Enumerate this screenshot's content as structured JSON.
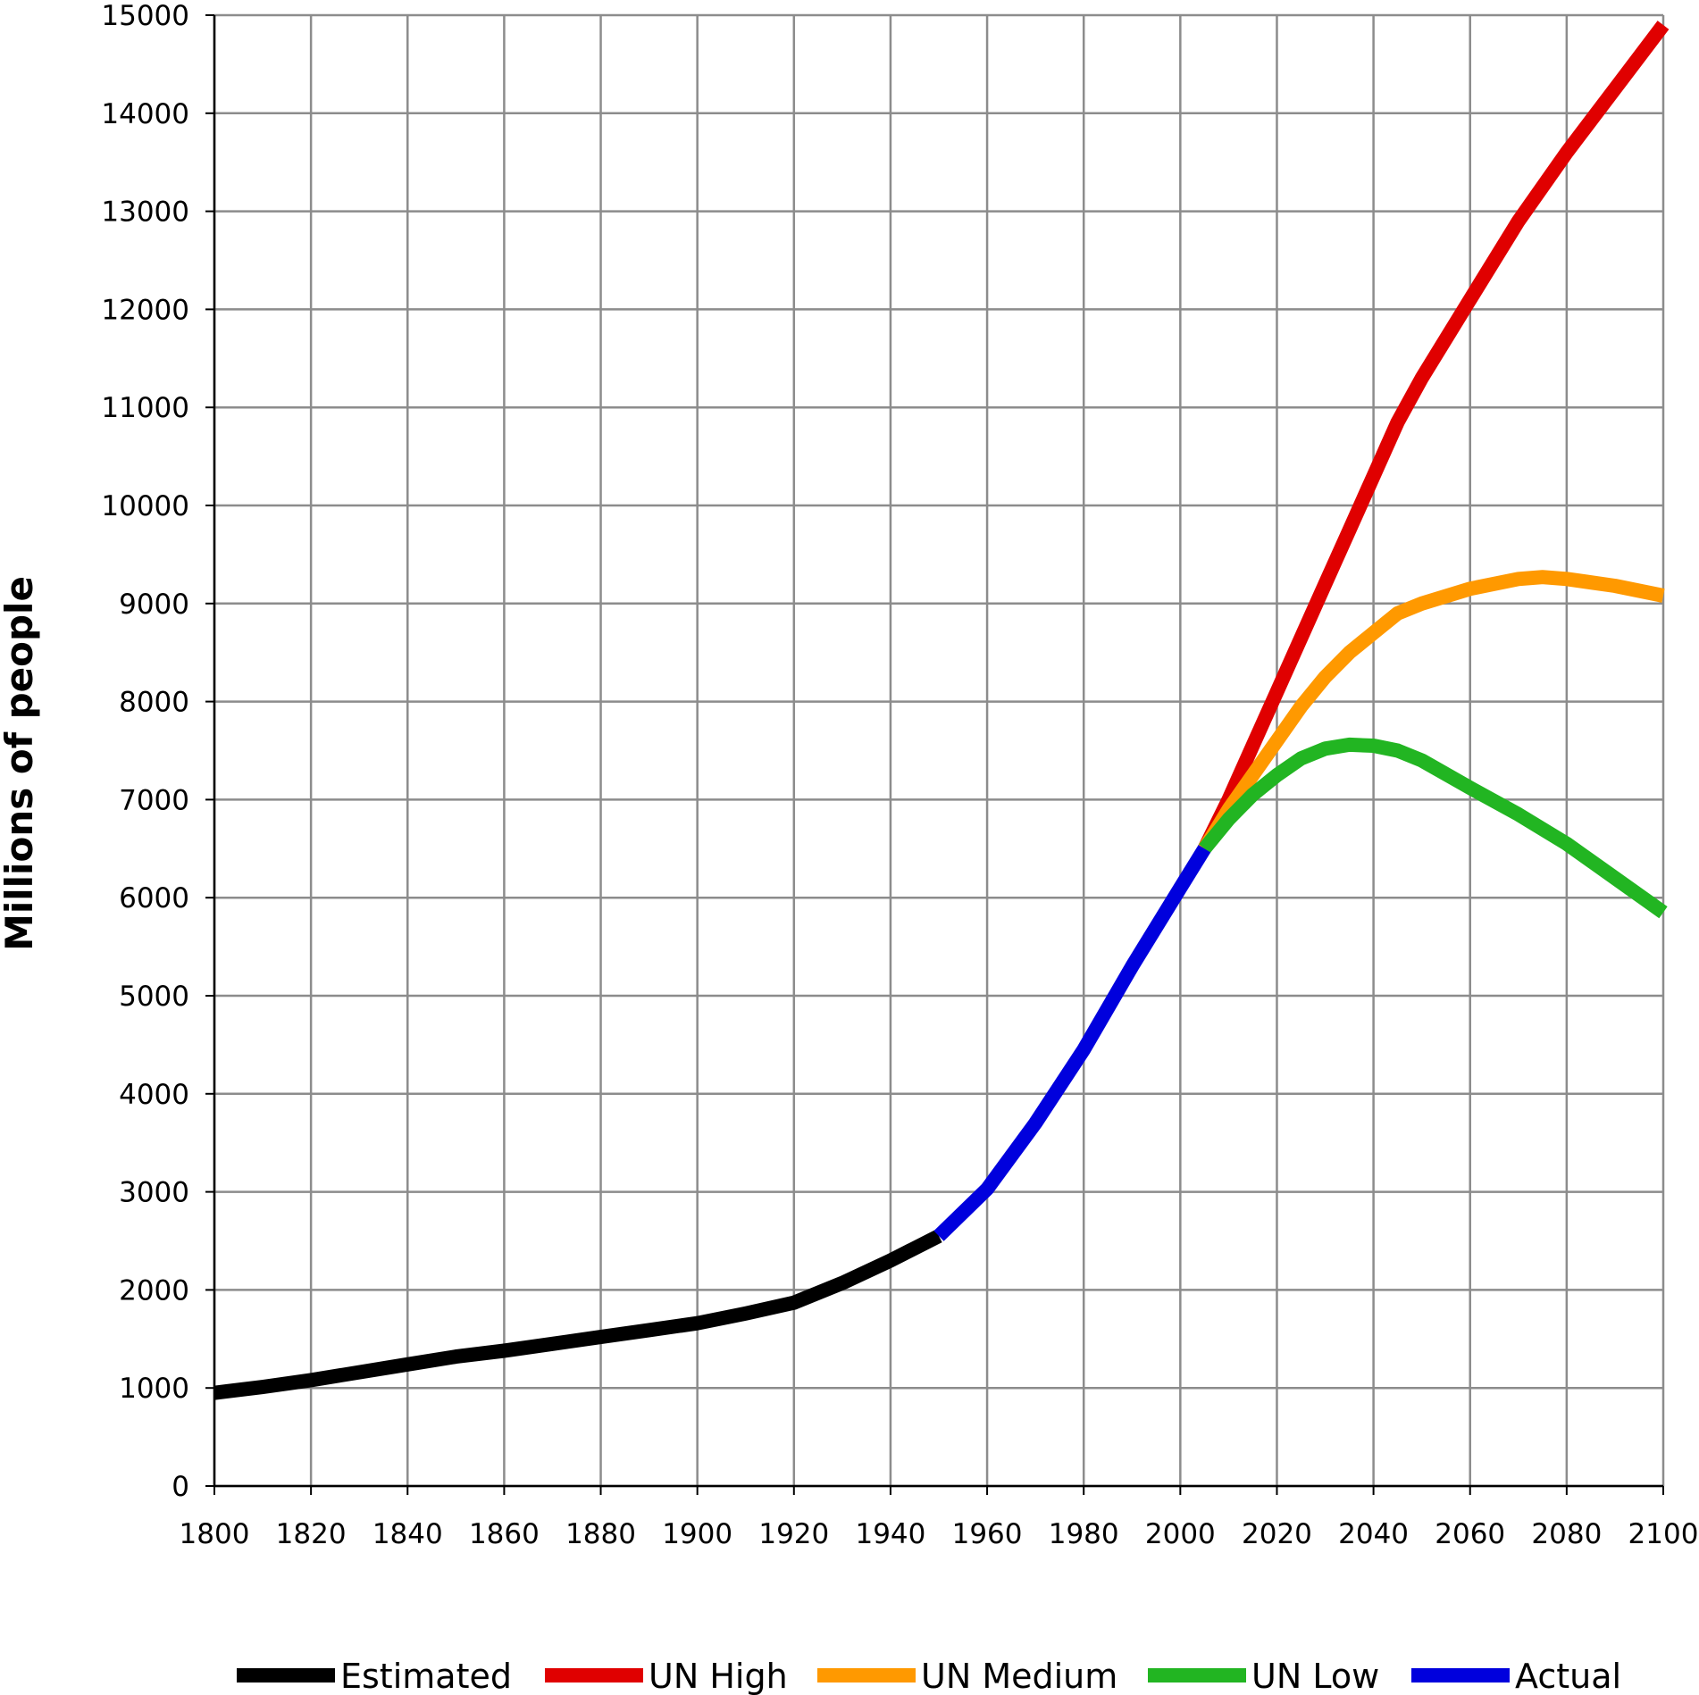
{
  "chart_data": {
    "type": "line",
    "title": "",
    "xlabel": "",
    "ylabel": "Millions of people",
    "xlim": [
      1800,
      2100
    ],
    "ylim": [
      0,
      15000
    ],
    "x_ticks": [
      "1800",
      "1820",
      "1840",
      "1860",
      "1880",
      "1900",
      "1920",
      "1940",
      "1960",
      "1980",
      "2000",
      "2020",
      "2040",
      "2060",
      "2080",
      "2100"
    ],
    "y_ticks": [
      "0",
      "1000",
      "2000",
      "3000",
      "4000",
      "5000",
      "6000",
      "7000",
      "8000",
      "9000",
      "10000",
      "11000",
      "12000",
      "13000",
      "14000",
      "15000"
    ],
    "grid": true,
    "legend_position": "bottom",
    "series": [
      {
        "name": "Estimated",
        "color": "#000000",
        "x": [
          1800,
          1810,
          1820,
          1830,
          1840,
          1850,
          1860,
          1870,
          1880,
          1890,
          1900,
          1910,
          1920,
          1930,
          1940,
          1950
        ],
        "y": [
          950,
          1010,
          1080,
          1160,
          1240,
          1320,
          1380,
          1450,
          1520,
          1590,
          1660,
          1760,
          1870,
          2070,
          2300,
          2550
        ]
      },
      {
        "name": "UN High",
        "color": "#e00000",
        "x": [
          2005,
          2010,
          2015,
          2020,
          2025,
          2030,
          2035,
          2040,
          2045,
          2050,
          2060,
          2070,
          2080,
          2090,
          2100
        ],
        "y": [
          6500,
          7000,
          7550,
          8100,
          8650,
          9200,
          9750,
          10300,
          10850,
          11300,
          12100,
          12900,
          13600,
          14250,
          14900
        ]
      },
      {
        "name": "UN Medium",
        "color": "#ff9900",
        "x": [
          2005,
          2010,
          2015,
          2020,
          2025,
          2030,
          2035,
          2040,
          2045,
          2050,
          2060,
          2070,
          2075,
          2080,
          2090,
          2100
        ],
        "y": [
          6500,
          6900,
          7250,
          7600,
          7950,
          8250,
          8500,
          8700,
          8900,
          9000,
          9150,
          9250,
          9270,
          9250,
          9180,
          9080
        ]
      },
      {
        "name": "UN Low",
        "color": "#22b522",
        "x": [
          2005,
          2010,
          2015,
          2020,
          2025,
          2030,
          2035,
          2040,
          2045,
          2050,
          2060,
          2070,
          2080,
          2090,
          2100
        ],
        "y": [
          6500,
          6800,
          7050,
          7250,
          7420,
          7520,
          7560,
          7550,
          7500,
          7400,
          7120,
          6850,
          6550,
          6200,
          5850
        ]
      },
      {
        "name": "Actual",
        "color": "#0000dd",
        "x": [
          1950,
          1960,
          1970,
          1980,
          1990,
          2000,
          2005
        ],
        "y": [
          2550,
          3030,
          3700,
          4450,
          5300,
          6100,
          6500
        ]
      }
    ]
  }
}
